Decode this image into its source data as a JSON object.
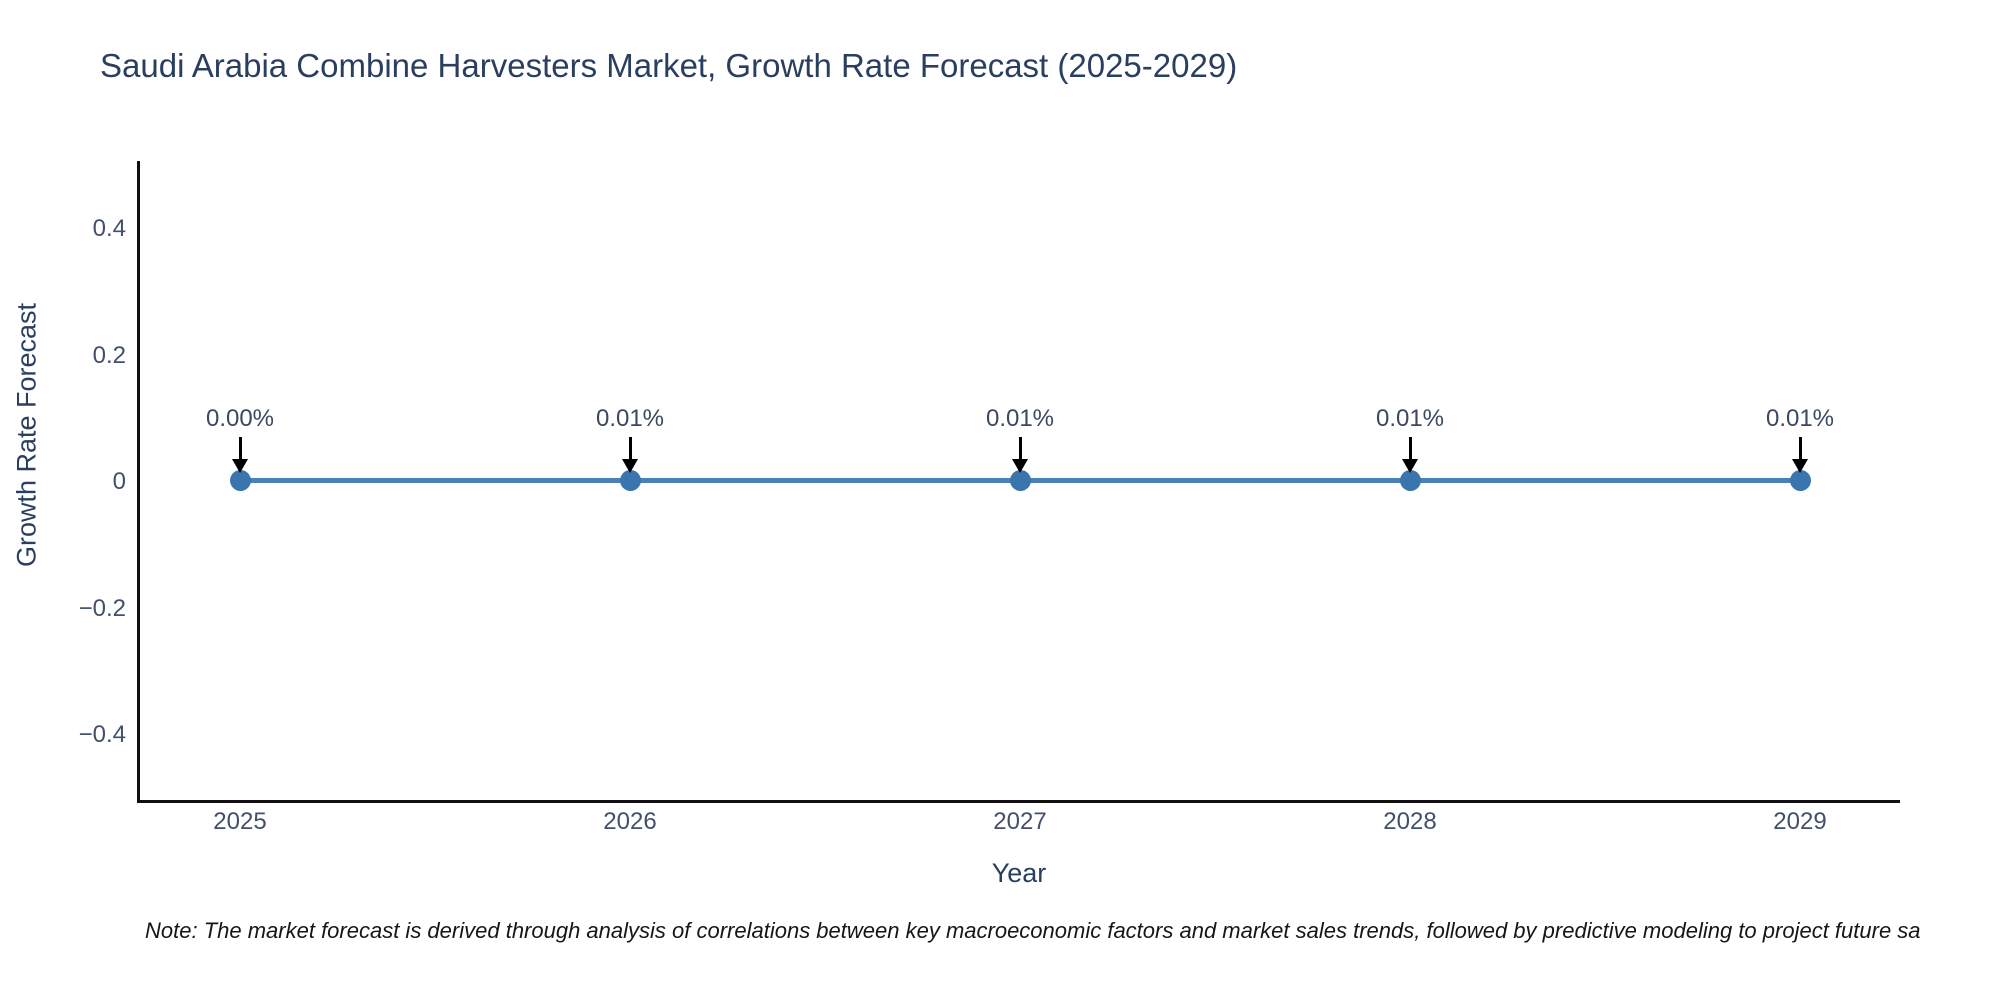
{
  "title": "Saudi Arabia Combine Harvesters Market, Growth Rate Forecast (2025-2029)",
  "note": "Note: The market forecast is derived through analysis of correlations between key macroeconomic factors and market sales trends, followed by predictive modeling to project future sa",
  "chart_data": {
    "type": "line",
    "title": "Saudi Arabia Combine Harvesters Market, Growth Rate Forecast (2025-2029)",
    "x": [
      "2025",
      "2026",
      "2027",
      "2028",
      "2029"
    ],
    "series": [
      {
        "name": "Growth Rate Forecast",
        "values_percent": [
          0.0,
          0.01,
          0.01,
          0.01,
          0.01
        ],
        "point_labels": [
          "0.00%",
          "0.01%",
          "0.01%",
          "0.01%",
          "0.01%"
        ]
      }
    ],
    "xlabel": "Year",
    "ylabel": "Growth Rate Forecast",
    "ylim": [
      -0.5,
      0.5
    ],
    "ytick_labels": [
      "0.4",
      "0.2",
      "0",
      "−0.2",
      "−0.4"
    ],
    "ytick_values": [
      0.4,
      0.2,
      0,
      -0.2,
      -0.4
    ],
    "grid": false,
    "legend_position": "none",
    "annotations_have_arrows": true
  },
  "colors": {
    "line": "#4a80b5",
    "marker": "#3a76ad",
    "arrow": "#000000",
    "title_text": "#2a3f5f",
    "tick_text": "#42506a",
    "annotation_text": "#3b485e",
    "axis_spine": "#101010",
    "note_text": "#161616",
    "background": "#ffffff"
  }
}
